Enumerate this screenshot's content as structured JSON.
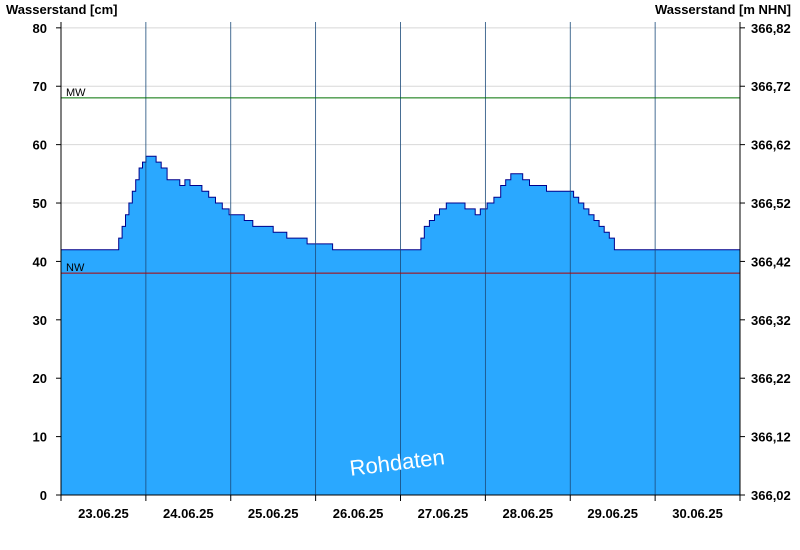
{
  "chart_data": {
    "type": "area",
    "left_axis_title": "Wasserstand [cm]",
    "right_axis_title": "Wasserstand [m NHN]",
    "ylim": [
      0,
      81
    ],
    "left_ticks": [
      0,
      10,
      20,
      30,
      40,
      50,
      60,
      70,
      80
    ],
    "right_ticks": [
      {
        "value": 0,
        "label": "366,02"
      },
      {
        "value": 10,
        "label": "366,12"
      },
      {
        "value": 20,
        "label": "366,22"
      },
      {
        "value": 30,
        "label": "366,32"
      },
      {
        "value": 40,
        "label": "366,42"
      },
      {
        "value": 50,
        "label": "366,52"
      },
      {
        "value": 60,
        "label": "366,62"
      },
      {
        "value": 70,
        "label": "366,72"
      },
      {
        "value": 80,
        "label": "366,82"
      }
    ],
    "x_days": [
      "23.06.25",
      "24.06.25",
      "25.06.25",
      "26.06.25",
      "27.06.25",
      "28.06.25",
      "29.06.25",
      "30.06.25"
    ],
    "reference_lines": [
      {
        "label": "MW",
        "value": 68,
        "color": "#007000"
      },
      {
        "label": "NW",
        "value": 38,
        "color": "#b00000"
      }
    ],
    "watermark": "Rohdaten",
    "fill_color": "#2aa8ff",
    "line_color": "#00008b",
    "grid": true,
    "series": {
      "x": [
        0,
        0.65,
        0.68,
        0.72,
        0.76,
        0.8,
        0.84,
        0.88,
        0.92,
        0.96,
        1.0,
        1.04,
        1.08,
        1.12,
        1.18,
        1.25,
        1.32,
        1.4,
        1.46,
        1.52,
        1.58,
        1.66,
        1.74,
        1.82,
        1.9,
        1.98,
        2.06,
        2.16,
        2.26,
        2.36,
        2.5,
        2.66,
        2.76,
        2.9,
        3.2,
        3.6,
        4.0,
        4.2,
        4.24,
        4.28,
        4.34,
        4.4,
        4.46,
        4.54,
        4.7,
        4.76,
        4.82,
        4.88,
        4.94,
        5.02,
        5.1,
        5.18,
        5.24,
        5.3,
        5.36,
        5.44,
        5.52,
        5.62,
        5.72,
        5.84,
        5.96,
        6.04,
        6.1,
        6.16,
        6.22,
        6.28,
        6.34,
        6.4,
        6.46,
        6.52,
        6.6,
        7.0,
        7.5,
        8.0
      ],
      "y": [
        42,
        42,
        44,
        46,
        48,
        50,
        52,
        54,
        56,
        57,
        58,
        58,
        58,
        57,
        56,
        54,
        54,
        53,
        54,
        53,
        53,
        52,
        51,
        50,
        49,
        48,
        48,
        47,
        46,
        46,
        45,
        44,
        44,
        43,
        42,
        42,
        42,
        42,
        44,
        46,
        47,
        48,
        49,
        50,
        50,
        49,
        49,
        48,
        49,
        50,
        51,
        53,
        54,
        55,
        55,
        54,
        53,
        53,
        52,
        52,
        52,
        51,
        50,
        49,
        48,
        47,
        46,
        45,
        44,
        42,
        42,
        42,
        42,
        42
      ]
    }
  }
}
